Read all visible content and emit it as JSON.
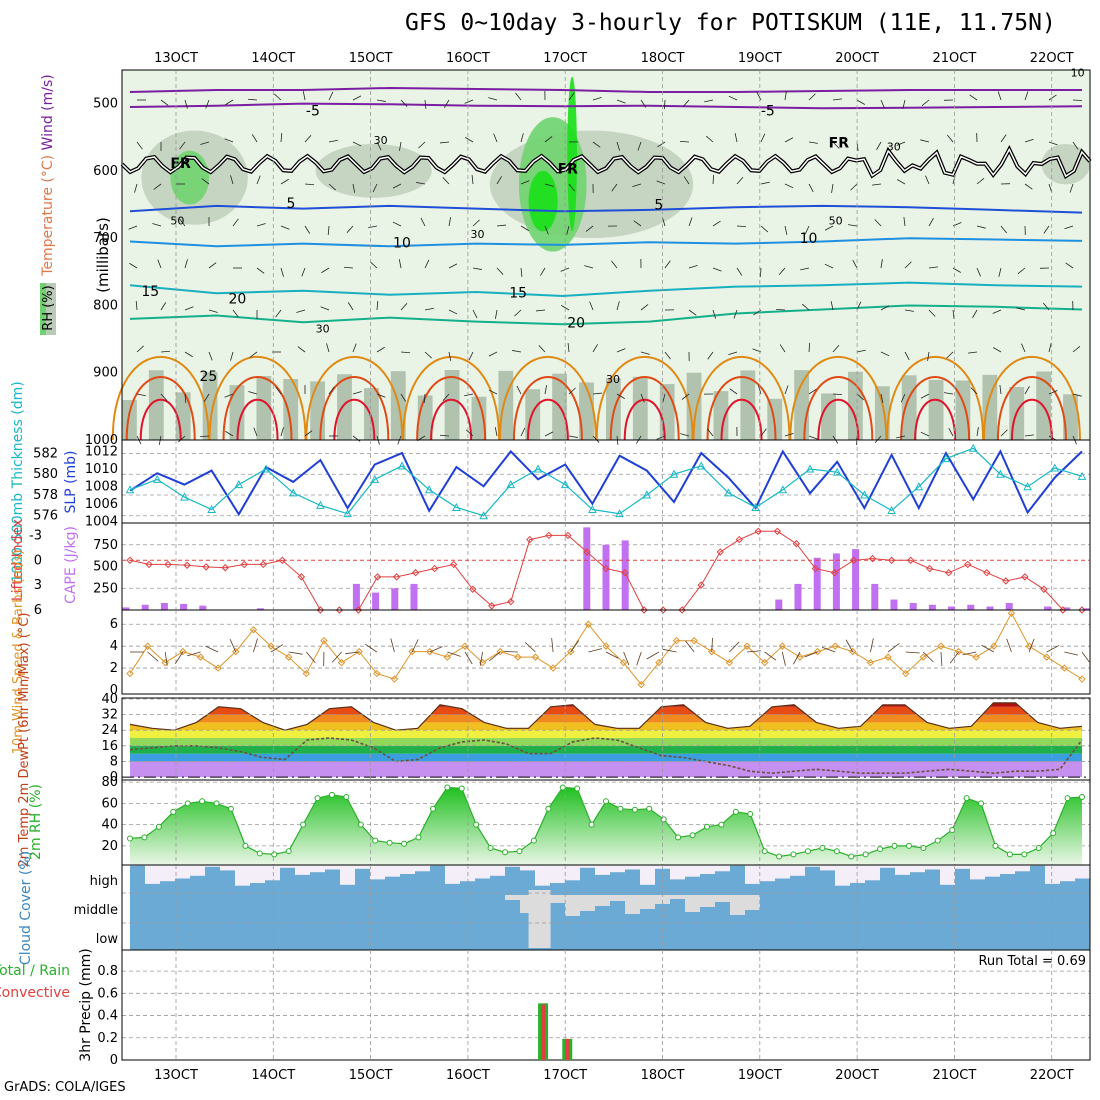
{
  "header": {
    "title": "GFS 0~10day 3-hourly for POTISKUM (11E, 11.75N)",
    "credit": "GrADS: COLA/IGES"
  },
  "colors": {
    "temp_cold": "#7a1fa2",
    "temp_5": "#1f4fd6",
    "temp_10": "#1f8fe0",
    "temp_15": "#18b0c0",
    "temp_20": "#14b08a",
    "temp_25": "#e08a14",
    "temp_30": "#e04a14",
    "temp_35": "#e0142a",
    "rh_light": "#e9f3e6",
    "rh_mid": "#b9cbb6",
    "rh_green": "#6fd46f",
    "rh_bright": "#18e018",
    "slp": "#1f3fd6",
    "thick": "#18b8c8",
    "cape": "#c070f0",
    "lifted": "#e04040",
    "wind_speed": "#e0942a",
    "cloud": "#6aaad4",
    "rh2m": "#2ab02a",
    "precip_total": "#2ab02a",
    "precip_conv": "#e04040"
  },
  "chart_data": [
    {
      "id": "upper_air",
      "type": "contour",
      "ylabel_parts": [
        "RH (%)",
        "Temperature (°C)",
        "Wind (m/s)"
      ],
      "ylabel_units": "(millibars)",
      "y_ticks": [
        "500",
        "600",
        "700",
        "800",
        "900",
        "1000"
      ],
      "ylim": [
        450,
        1000
      ],
      "x_tick_labels": [
        "13OCT",
        "14OCT",
        "15OCT",
        "16OCT",
        "17OCT",
        "18OCT",
        "19OCT",
        "20OCT",
        "21OCT",
        "22OCT"
      ],
      "freezing_label": "FR",
      "contour_labels": [
        {
          "text": "-5",
          "t": 0.19,
          "p": 518
        },
        {
          "text": "-5",
          "t": 0.66,
          "p": 518
        },
        {
          "text": "5",
          "t": 0.17,
          "p": 655
        },
        {
          "text": "5",
          "t": 0.55,
          "p": 657
        },
        {
          "text": "10",
          "t": 0.28,
          "p": 714
        },
        {
          "text": "10",
          "t": 0.7,
          "p": 707
        },
        {
          "text": "15",
          "t": 0.02,
          "p": 786
        },
        {
          "text": "15",
          "t": 0.4,
          "p": 788
        },
        {
          "text": "20",
          "t": 0.11,
          "p": 797
        },
        {
          "text": "20",
          "t": 0.46,
          "p": 833
        },
        {
          "text": "25",
          "t": 0.08,
          "p": 912
        },
        {
          "text": "FR",
          "t": 0.05,
          "p": 596
        },
        {
          "text": "FR",
          "t": 0.45,
          "p": 604
        },
        {
          "text": "FR",
          "t": 0.73,
          "p": 565
        }
      ],
      "rh_labels": [
        "30",
        "50",
        "10"
      ],
      "temp_levels": [
        {
          "value": -5,
          "p": [
            505,
            503,
            500,
            501,
            503,
            504,
            503,
            505,
            507,
            506,
            505,
            504
          ]
        },
        {
          "value": 5,
          "p": [
            660,
            652,
            656,
            652,
            656,
            660,
            658,
            654,
            652,
            654,
            658,
            662
          ]
        },
        {
          "value": 10,
          "p": [
            705,
            712,
            708,
            712,
            708,
            710,
            706,
            708,
            705,
            700,
            702,
            704
          ]
        },
        {
          "value": 15,
          "p": [
            770,
            782,
            778,
            784,
            780,
            786,
            778,
            772,
            770,
            766,
            770,
            772
          ]
        },
        {
          "value": 20,
          "p": [
            820,
            815,
            825,
            818,
            824,
            828,
            824,
            812,
            806,
            800,
            802,
            806
          ]
        }
      ],
      "rh_regions": [
        {
          "level": "mid",
          "t0": 0.02,
          "t1": 0.13,
          "p0": 540,
          "p1": 680
        },
        {
          "level": "green",
          "t0": 0.05,
          "t1": 0.09,
          "p0": 570,
          "p1": 650
        },
        {
          "level": "mid",
          "t0": 0.38,
          "t1": 0.59,
          "p0": 540,
          "p1": 700
        },
        {
          "level": "green",
          "t0": 0.41,
          "t1": 0.48,
          "p0": 520,
          "p1": 720
        },
        {
          "level": "bright",
          "t0": 0.42,
          "t1": 0.45,
          "p0": 600,
          "p1": 690
        },
        {
          "level": "bright",
          "t0": 0.46,
          "t1": 0.47,
          "p0": 460,
          "p1": 690
        },
        {
          "level": "mid",
          "t0": 0.2,
          "t1": 0.32,
          "p0": 560,
          "p1": 640
        },
        {
          "level": "mid",
          "t0": 0.95,
          "t1": 1.0,
          "p0": 560,
          "p1": 620
        }
      ]
    },
    {
      "id": "slp_thickness",
      "type": "line",
      "ylabel_left": "1000-500mb Thickness (dm)",
      "ylabel_right": "SLP (mb)",
      "y_ticks_left": [
        "582",
        "580",
        "578",
        "576"
      ],
      "y_ticks_right": [
        "1012",
        "1010",
        "1008",
        "1006",
        "1004"
      ],
      "series": [
        {
          "name": "SLP (mb)",
          "values": [
            1007.5,
            1009.5,
            1008.2,
            1009.8,
            1004.8,
            1010.2,
            1008.5,
            1011.0,
            1005.5,
            1010.5,
            1011.8,
            1005.2,
            1010.2,
            1008.0,
            1012.0,
            1008.8,
            1010.5,
            1006.0,
            1011.5,
            1009.8,
            1006.2,
            1011.8,
            1009.0,
            1005.5,
            1012.0,
            1007.2,
            1010.8,
            1005.5,
            1011.6,
            1005.5,
            1011.8,
            1006.5,
            1012.0,
            1005.0,
            1009.0,
            1012.0
          ]
        },
        {
          "name": "Thickness (dm)",
          "values": [
            578.5,
            579.5,
            577.8,
            576.6,
            579.0,
            580.5,
            578.2,
            577.0,
            576.2,
            579.5,
            580.8,
            578.5,
            576.8,
            576.0,
            579.0,
            580.5,
            579.0,
            576.6,
            576.2,
            578.0,
            580.0,
            580.8,
            578.2,
            576.8,
            578.5,
            580.5,
            580.2,
            578.0,
            576.5,
            578.8,
            581.5,
            582.5,
            580.0,
            578.8,
            580.6,
            579.8
          ]
        }
      ]
    },
    {
      "id": "cape_li",
      "type": "bar",
      "ylabel_left": "Lifted Index",
      "ylabel_right": "CAPE (J/kg)",
      "y_ticks_left": [
        "-3",
        "0",
        "3",
        "6"
      ],
      "y_ticks_right": [
        "750",
        "500",
        "250"
      ],
      "cape": [
        30,
        60,
        80,
        70,
        50,
        0,
        0,
        20,
        0,
        0,
        0,
        0,
        300,
        200,
        250,
        300,
        0,
        0,
        0,
        0,
        0,
        0,
        0,
        0,
        950,
        750,
        800,
        0,
        0,
        0,
        0,
        0,
        0,
        0,
        120,
        300,
        600,
        650,
        700,
        300,
        120,
        80,
        60,
        40,
        60,
        40,
        80,
        0,
        40,
        30,
        20
      ],
      "lifted_index": [
        0,
        0.5,
        0.5,
        0.6,
        0.8,
        0.9,
        0.5,
        0.5,
        0,
        2,
        6,
        6,
        6,
        2,
        2,
        1.5,
        1.0,
        0.5,
        3.5,
        5.5,
        5.0,
        -2.5,
        -3.0,
        -3.0,
        -1.0,
        1.0,
        1.5,
        6.0,
        6.0,
        6.0,
        3.0,
        -1.0,
        -2.5,
        -3.5,
        -3.5,
        -2.0,
        1.0,
        1.5,
        0.0,
        -0.2,
        0.0,
        0.0,
        1.0,
        1.5,
        0.5,
        1.5,
        2.5,
        2.0,
        3.5,
        6.0,
        6.0
      ]
    },
    {
      "id": "wind10m",
      "type": "line",
      "ylabel": "10m Wind Speed & Barbs (m/s)",
      "y_ticks": [
        "6",
        "4",
        "2",
        "0"
      ],
      "values": [
        1.5,
        4.0,
        2.5,
        3.5,
        3.0,
        2.0,
        3.5,
        5.5,
        4.0,
        3.0,
        1.5,
        4.5,
        2.5,
        3.5,
        1.5,
        1.0,
        3.5,
        3.5,
        3.0,
        4.0,
        2.5,
        3.5,
        3.0,
        3.0,
        2.0,
        3.5,
        6.0,
        4.0,
        2.5,
        0.5,
        2.5,
        4.5,
        4.5,
        3.5,
        2.5,
        4.0,
        2.5,
        4.0,
        3.0,
        3.5,
        4.0,
        3.5,
        2.5,
        3.0,
        1.5,
        3.0,
        4.0,
        3.5,
        3.0,
        4.0,
        7.0,
        4.0,
        3.0,
        2.0,
        1.0
      ]
    },
    {
      "id": "temp2m",
      "type": "area",
      "ylabel": "2m Temp 2m DewPt (6hr Min/Max) (°C)",
      "y_ticks": [
        "40",
        "32",
        "24",
        "16",
        "8",
        "0"
      ],
      "temp": [
        27,
        25,
        24,
        28,
        36,
        35,
        28,
        24,
        27,
        35,
        36,
        28,
        24,
        25,
        37,
        35,
        28,
        25,
        25,
        36,
        37,
        27,
        25,
        25,
        36,
        37,
        28,
        25,
        26,
        36,
        37,
        28,
        25,
        26,
        37,
        37,
        28,
        25,
        26,
        38,
        38,
        28,
        25,
        26
      ],
      "dewpt": [
        14,
        15,
        16,
        16,
        15,
        13,
        10,
        9,
        19,
        20,
        19,
        15,
        8,
        9,
        15,
        18,
        19,
        17,
        12,
        12,
        18,
        20,
        19,
        15,
        11,
        10,
        8,
        6,
        3,
        2,
        3,
        4,
        3,
        2,
        2,
        2,
        3,
        4,
        3,
        2,
        3,
        3,
        4,
        19
      ]
    },
    {
      "id": "rh2m",
      "type": "area",
      "ylabel": "2m RH (%)",
      "y_ticks": [
        "80",
        "60",
        "40",
        "20"
      ],
      "values": [
        27,
        28,
        38,
        52,
        60,
        62,
        60,
        55,
        20,
        13,
        12,
        15,
        40,
        65,
        68,
        66,
        40,
        25,
        23,
        22,
        28,
        55,
        75,
        74,
        40,
        18,
        14,
        15,
        25,
        55,
        75,
        74,
        40,
        62,
        55,
        54,
        55,
        45,
        28,
        30,
        38,
        40,
        52,
        50,
        15,
        10,
        12,
        15,
        18,
        15,
        10,
        12,
        17,
        20,
        20,
        18,
        25,
        35,
        65,
        60,
        20,
        12,
        12,
        18,
        32,
        65,
        66
      ]
    },
    {
      "id": "cloud",
      "type": "heatmap",
      "ylabel": "Cloud Cover (%)",
      "levels": [
        "high",
        "middle",
        "low"
      ]
    },
    {
      "id": "precip",
      "type": "bar",
      "ylabel_left": "Total / Rain Convective",
      "ylabel": "3hr Precip (mm)",
      "y_ticks": [
        "0.8",
        "0.6",
        "0.4",
        "0.2",
        "0"
      ],
      "run_total_label": "Run Total = 0.69",
      "bars": [
        {
          "t": 0.435,
          "total": 0.51,
          "conv": 0.5
        },
        {
          "t": 0.46,
          "total": 0.19,
          "conv": 0.19
        }
      ]
    }
  ]
}
